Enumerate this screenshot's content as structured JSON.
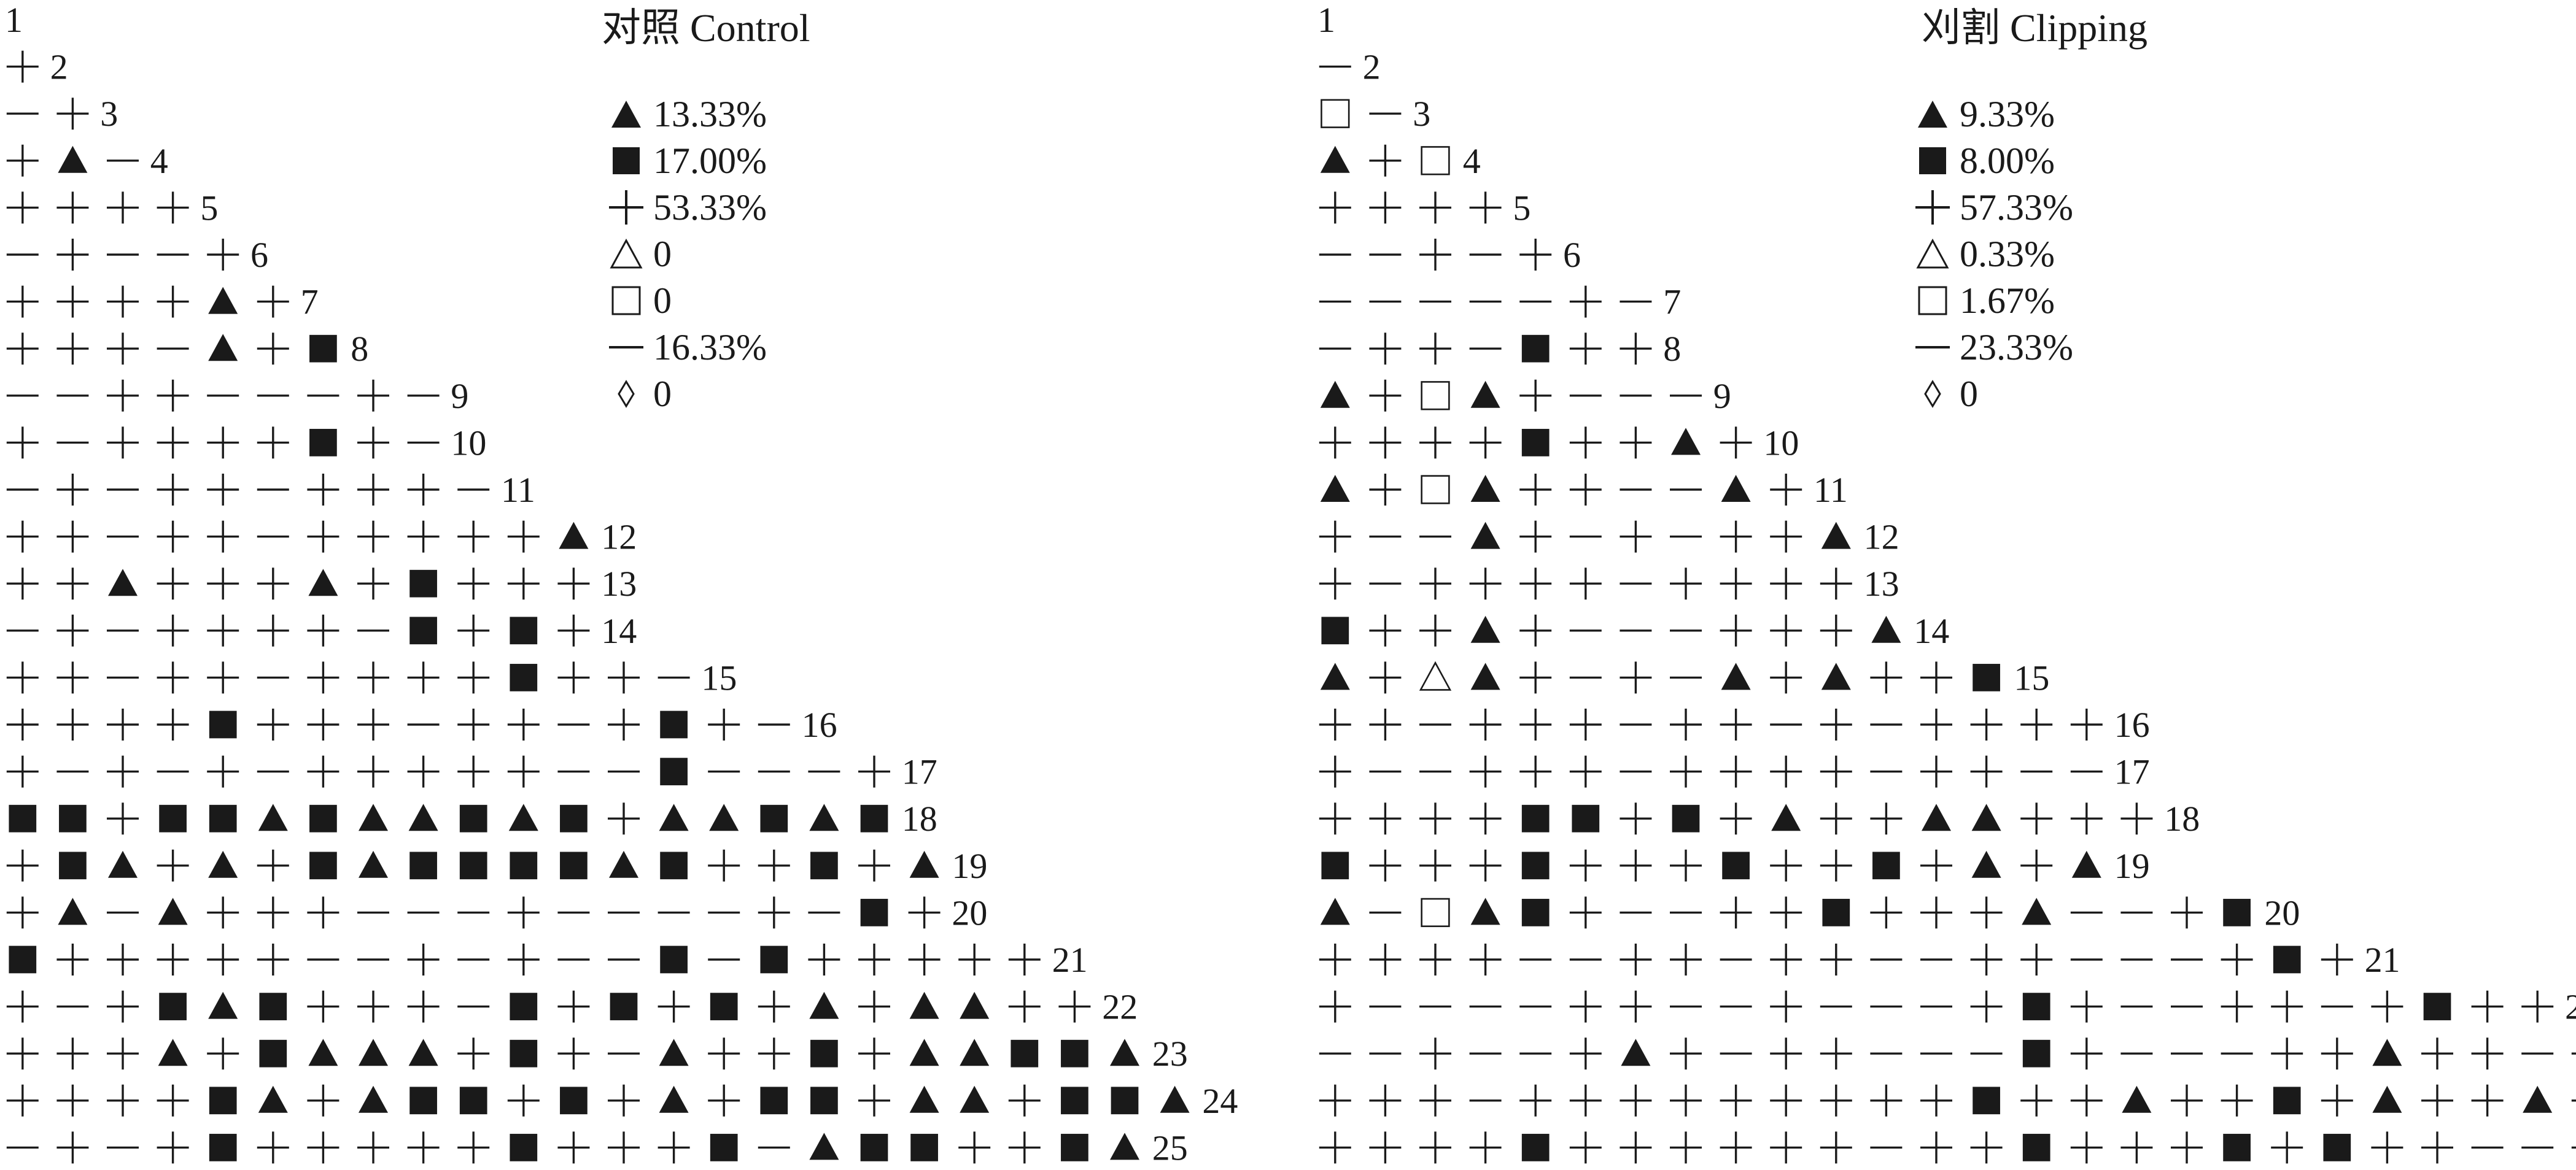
{
  "panels": [
    {
      "id": "control",
      "title": "对照 Control",
      "legend": [
        {
          "symbol": "filled-triangle",
          "value": "13.33%"
        },
        {
          "symbol": "filled-square",
          "value": "17.00%"
        },
        {
          "symbol": "plus",
          "value": "53.33%"
        },
        {
          "symbol": "open-triangle",
          "value": "0"
        },
        {
          "symbol": "open-square",
          "value": "0"
        },
        {
          "symbol": "dash",
          "value": "16.33%"
        },
        {
          "symbol": "diamond",
          "value": "0"
        }
      ],
      "rows": [
        "",
        "+",
        "-+",
        "+T-",
        "++++",
        "-+--+",
        "++++T+",
        "+++-T+S",
        "--++---+-",
        "+-++++S+-",
        "-+-++-+++-",
        "++-++-+++++T",
        "++T+++T+S+++",
        "-+-++++-S+S+",
        "++-++-++++S++-",
        "++++S+++-++-+S+-",
        "+-+-+-+++++--S---+",
        "SS+SSTSTTSTS+TTSTS",
        "+ST+T+STSSSSTS++S+T",
        "+T-T+++---+----+-S+",
        "S+++++--+-+--S-S+++++",
        "+-+STS+++-S+S+S+T+TT++",
        "+++T+STTT+S+-T++S+TTSST",
        "++++ST+TSS+S+T+SS+TT+SST",
        "-+-+S+++++S+++S-TSS++ST"
      ]
    },
    {
      "id": "clipping",
      "title": "刈割 Clipping",
      "legend": [
        {
          "symbol": "filled-triangle",
          "value": "9.33%"
        },
        {
          "symbol": "filled-square",
          "value": "8.00%"
        },
        {
          "symbol": "plus",
          "value": "57.33%"
        },
        {
          "symbol": "open-triangle",
          "value": "0.33%"
        },
        {
          "symbol": "open-square",
          "value": "1.67%"
        },
        {
          "symbol": "dash",
          "value": "23.33%"
        },
        {
          "symbol": "diamond",
          "value": "0"
        }
      ],
      "rows": [
        "",
        "-",
        "Q-",
        "T+Q",
        "++++",
        "--+-+",
        "-----+-",
        "-++-S++",
        "T+QT+---",
        "++++S++T+",
        "T+QT++--T+",
        "+--T+-+-++T",
        "+-++++-++++",
        "S++T+---+++T",
        "T+AT+-+-T+T++S",
        "++-+++-++-+-++++",
        "+--+++-++++-++--",
        "++++SS+S+T++TT+++",
        "S+++S+++S++S+T+T",
        "T-QTS+--++S+++T--+S",
        "++++--++-++--++---+S+",
        "+----++--+---+S+--++-+S++",
        "--+--+T+-++---S+---++T++--",
        "+++-+++++++++S++T++S+T++T+",
        "++++S++++++-++S+++S+S++--++"
      ]
    }
  ],
  "row_numbers": [
    "1",
    "2",
    "3",
    "4",
    "5",
    "6",
    "7",
    "8",
    "9",
    "10",
    "11",
    "12",
    "13",
    "14",
    "15",
    "16",
    "17",
    "18",
    "19",
    "20",
    "21",
    "22",
    "23",
    "24",
    "25"
  ],
  "symbol_code": {
    "+": "plus",
    "-": "dash",
    "T": "filled-triangle",
    "S": "filled-square",
    "A": "open-triangle",
    "Q": "open-square",
    "D": "diamond"
  },
  "colors": {
    "ink": "#1a1a1a",
    "background": "#ffffff"
  }
}
